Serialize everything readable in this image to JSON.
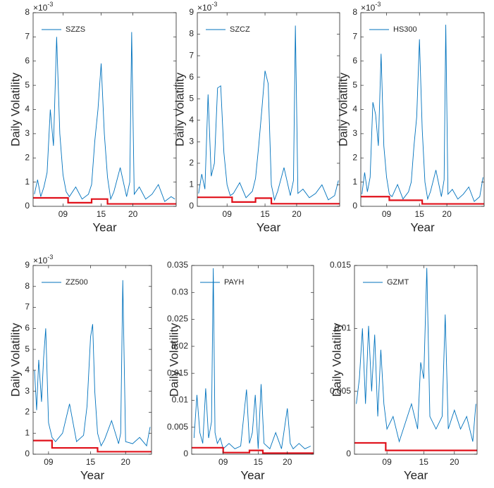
{
  "chart_data": [
    {
      "type": "line",
      "xlabel": "Year",
      "ylabel": "Daily Volatility",
      "y_scale": {
        "base": "×10",
        "exponent": "-3"
      },
      "legend": "upper-left",
      "xlim": [
        4.3,
        26.8
      ],
      "xticks": [
        {
          "value": 9,
          "label": "09"
        },
        15,
        20
      ],
      "ylim": [
        0,
        8
      ],
      "yticks": [
        0,
        1,
        2,
        3,
        4,
        5,
        6,
        7,
        8
      ],
      "x": [
        4.5,
        5,
        5.5,
        6,
        6.5,
        7,
        7.5,
        8,
        8.5,
        9,
        9.5,
        10,
        11,
        12,
        13,
        13.5,
        14,
        14.5,
        15,
        15.5,
        16,
        16.5,
        17,
        18,
        19,
        19.5,
        19.8,
        20.2,
        21,
        22,
        23,
        24,
        25,
        26,
        26.6
      ],
      "series": [
        {
          "name": "SZZS",
          "color": "#0072bd",
          "values": [
            0.5,
            1.1,
            0.4,
            0.8,
            1.4,
            4.0,
            2.5,
            7.0,
            3.0,
            1.3,
            0.6,
            0.4,
            0.8,
            0.3,
            0.5,
            0.9,
            2.7,
            4.0,
            5.9,
            3.0,
            1.2,
            0.3,
            0.6,
            1.6,
            0.4,
            1.0,
            7.2,
            0.5,
            0.8,
            0.3,
            0.5,
            0.9,
            0.2,
            0.4,
            0.3
          ]
        },
        {
          "color": "#e0101a",
          "x": [
            4.3,
            9.8,
            9.8,
            13.5,
            13.5,
            16,
            16,
            26.8
          ],
          "values": [
            0.35,
            0.35,
            0.15,
            0.15,
            0.3,
            0.3,
            0.1,
            0.1
          ]
        }
      ]
    },
    {
      "type": "line",
      "xlabel": "Year",
      "ylabel": "Daily Volatility",
      "y_scale": {
        "base": "×10",
        "exponent": "-3"
      },
      "legend": "upper-left",
      "xlim": [
        4.3,
        26.8
      ],
      "xticks": [
        {
          "value": 9,
          "label": "09"
        },
        15,
        20
      ],
      "ylim": [
        0,
        9
      ],
      "yticks": [
        0,
        1,
        2,
        3,
        4,
        5,
        6,
        7,
        8,
        9
      ],
      "x": [
        4.5,
        5,
        5.5,
        6,
        6.5,
        7,
        7.5,
        8,
        8.5,
        9,
        9.5,
        10,
        11,
        12,
        13,
        13.5,
        14,
        14.5,
        15,
        15.5,
        16,
        16.5,
        17,
        18,
        19,
        19.5,
        19.8,
        20.2,
        21,
        22,
        23,
        24,
        25,
        26,
        26.6
      ],
      "series": [
        {
          "name": "SZCZ",
          "color": "#0072bd",
          "values": [
            0.6,
            1.5,
            0.8,
            5.2,
            1.4,
            2.0,
            5.5,
            5.6,
            2.5,
            1.0,
            0.5,
            0.6,
            1.1,
            0.4,
            0.7,
            1.3,
            2.8,
            4.5,
            6.3,
            5.7,
            1.0,
            0.3,
            0.7,
            1.8,
            0.5,
            1.2,
            8.4,
            0.6,
            0.8,
            0.4,
            0.6,
            1.0,
            0.3,
            0.5,
            1.2
          ]
        },
        {
          "color": "#e0101a",
          "x": [
            4.3,
            9.8,
            9.8,
            13.5,
            13.5,
            16,
            16,
            26.8
          ],
          "values": [
            0.42,
            0.42,
            0.2,
            0.2,
            0.38,
            0.38,
            0.12,
            0.12
          ]
        }
      ]
    },
    {
      "type": "line",
      "xlabel": "Year",
      "ylabel": "Daily Volatility",
      "y_scale": {
        "base": "×10",
        "exponent": "-3"
      },
      "legend": "upper-left",
      "xlim": [
        4.3,
        26.8
      ],
      "xticks": [
        {
          "value": 9,
          "label": "09"
        },
        15,
        20
      ],
      "ylim": [
        0,
        8
      ],
      "yticks": [
        0,
        1,
        2,
        3,
        4,
        5,
        6,
        7,
        8
      ],
      "x": [
        4.5,
        5,
        5.5,
        6,
        6.5,
        7,
        7.5,
        8,
        8.5,
        9,
        9.5,
        10,
        11,
        12,
        13,
        13.5,
        14,
        14.5,
        15,
        15.5,
        16,
        16.5,
        17,
        18,
        19,
        19.5,
        19.8,
        20.2,
        21,
        22,
        23,
        24,
        25,
        26,
        26.6
      ],
      "series": [
        {
          "name": "HS300",
          "color": "#0072bd",
          "values": [
            0.5,
            1.4,
            0.6,
            1.2,
            4.3,
            3.8,
            2.5,
            6.3,
            2.5,
            1.2,
            0.5,
            0.4,
            0.9,
            0.3,
            0.6,
            1.0,
            2.5,
            3.7,
            6.9,
            3.2,
            1.0,
            0.3,
            0.6,
            1.5,
            0.4,
            1.1,
            7.5,
            0.5,
            0.7,
            0.3,
            0.5,
            0.8,
            0.2,
            0.4,
            1.2
          ]
        },
        {
          "color": "#e0101a",
          "x": [
            4.3,
            9.5,
            9.5,
            15.5,
            15.5,
            26.8
          ],
          "values": [
            0.4,
            0.4,
            0.25,
            0.25,
            0.1,
            0.1
          ]
        }
      ]
    },
    {
      "type": "line",
      "xlabel": "Year",
      "ylabel": "Daily Volatility",
      "y_scale": {
        "base": "×10",
        "exponent": "-3"
      },
      "legend": "upper-left",
      "xlim": [
        6.8,
        23.7
      ],
      "xticks": [
        {
          "value": 9,
          "label": "09"
        },
        15,
        20
      ],
      "ylim": [
        0,
        9
      ],
      "yticks": [
        0,
        1,
        2,
        3,
        4,
        5,
        6,
        7,
        8,
        9
      ],
      "x": [
        7,
        7.3,
        7.6,
        8,
        8.3,
        8.6,
        9,
        9.5,
        10,
        11,
        12,
        13,
        14,
        14.5,
        15,
        15.3,
        15.6,
        16,
        16.5,
        17,
        18,
        19,
        19.3,
        19.6,
        20,
        21,
        22,
        23,
        23.5
      ],
      "series": [
        {
          "name": "ZZ500",
          "color": "#0072bd",
          "values": [
            4.0,
            2.1,
            4.5,
            2.5,
            4.6,
            6.0,
            1.5,
            0.8,
            0.6,
            1.0,
            2.4,
            0.6,
            0.9,
            2.3,
            5.6,
            6.2,
            3.0,
            1.0,
            0.4,
            0.7,
            1.6,
            0.5,
            1.0,
            8.3,
            0.6,
            0.5,
            0.8,
            0.4,
            1.3
          ]
        },
        {
          "color": "#e0101a",
          "x": [
            6.8,
            9.5,
            9.5,
            16,
            16,
            23.7
          ],
          "values": [
            0.65,
            0.65,
            0.3,
            0.3,
            0.12,
            0.12
          ]
        }
      ]
    },
    {
      "type": "line",
      "xlabel": "Year",
      "ylabel": "Daily Volatility",
      "legend": "upper-left",
      "xlim": [
        3.6,
        24.5
      ],
      "xticks": [
        {
          "value": 9,
          "label": "09"
        },
        15,
        20
      ],
      "ylim": [
        0,
        0.035
      ],
      "yticks": [
        0,
        0.005,
        0.01,
        0.015,
        0.02,
        0.025,
        0.03,
        0.035
      ],
      "x": [
        4,
        4.5,
        5,
        5.5,
        6,
        6.5,
        7,
        7.3,
        7.6,
        8,
        8.5,
        9,
        10,
        11,
        12,
        13,
        13.5,
        14,
        14.5,
        15,
        15.5,
        16,
        17,
        18,
        19,
        20,
        20.5,
        21,
        22,
        23,
        24
      ],
      "series": [
        {
          "name": "PAYH",
          "color": "#0072bd",
          "values": [
            0.003,
            0.011,
            0.004,
            0.002,
            0.0122,
            0.003,
            0.006,
            0.0345,
            0.004,
            0.002,
            0.003,
            0.001,
            0.002,
            0.001,
            0.0015,
            0.012,
            0.002,
            0.004,
            0.011,
            0.001,
            0.013,
            0.002,
            0.001,
            0.004,
            0.001,
            0.0085,
            0.002,
            0.001,
            0.002,
            0.001,
            0.0015
          ]
        },
        {
          "color": "#e0101a",
          "x": [
            3.6,
            9,
            9,
            13.5,
            13.5,
            15.8,
            15.8,
            24.5
          ],
          "values": [
            0.0012,
            0.0012,
            0.0003,
            0.0003,
            0.0007,
            0.0007,
            0.0002,
            0.0002
          ]
        }
      ]
    },
    {
      "type": "line",
      "xlabel": "Year",
      "ylabel": "Daily Volatility",
      "legend": "upper-left",
      "xlim": [
        3.7,
        23.7
      ],
      "xticks": [
        {
          "value": 9,
          "label": "09"
        },
        15,
        20
      ],
      "ylim": [
        0,
        0.015
      ],
      "yticks": [
        0,
        0.005,
        0.01,
        0.015
      ],
      "x": [
        4,
        4.5,
        5,
        5.5,
        6,
        6.5,
        7,
        7.5,
        8,
        8.5,
        9,
        10,
        11,
        12,
        13,
        14,
        14.5,
        15,
        15.5,
        16,
        17,
        18,
        18.5,
        19,
        20,
        21,
        22,
        23,
        23.5
      ],
      "series": [
        {
          "name": "GZMT",
          "color": "#0072bd",
          "values": [
            0.004,
            0.006,
            0.01,
            0.004,
            0.0102,
            0.005,
            0.0095,
            0.003,
            0.0083,
            0.004,
            0.002,
            0.003,
            0.001,
            0.0025,
            0.004,
            0.002,
            0.0073,
            0.006,
            0.0148,
            0.003,
            0.002,
            0.003,
            0.0111,
            0.002,
            0.0035,
            0.002,
            0.003,
            0.001,
            0.004
          ]
        },
        {
          "color": "#e0101a",
          "x": [
            3.7,
            8.8,
            8.8,
            23.7
          ],
          "values": [
            0.0009,
            0.0009,
            0.0003,
            0.0003
          ]
        }
      ]
    }
  ]
}
